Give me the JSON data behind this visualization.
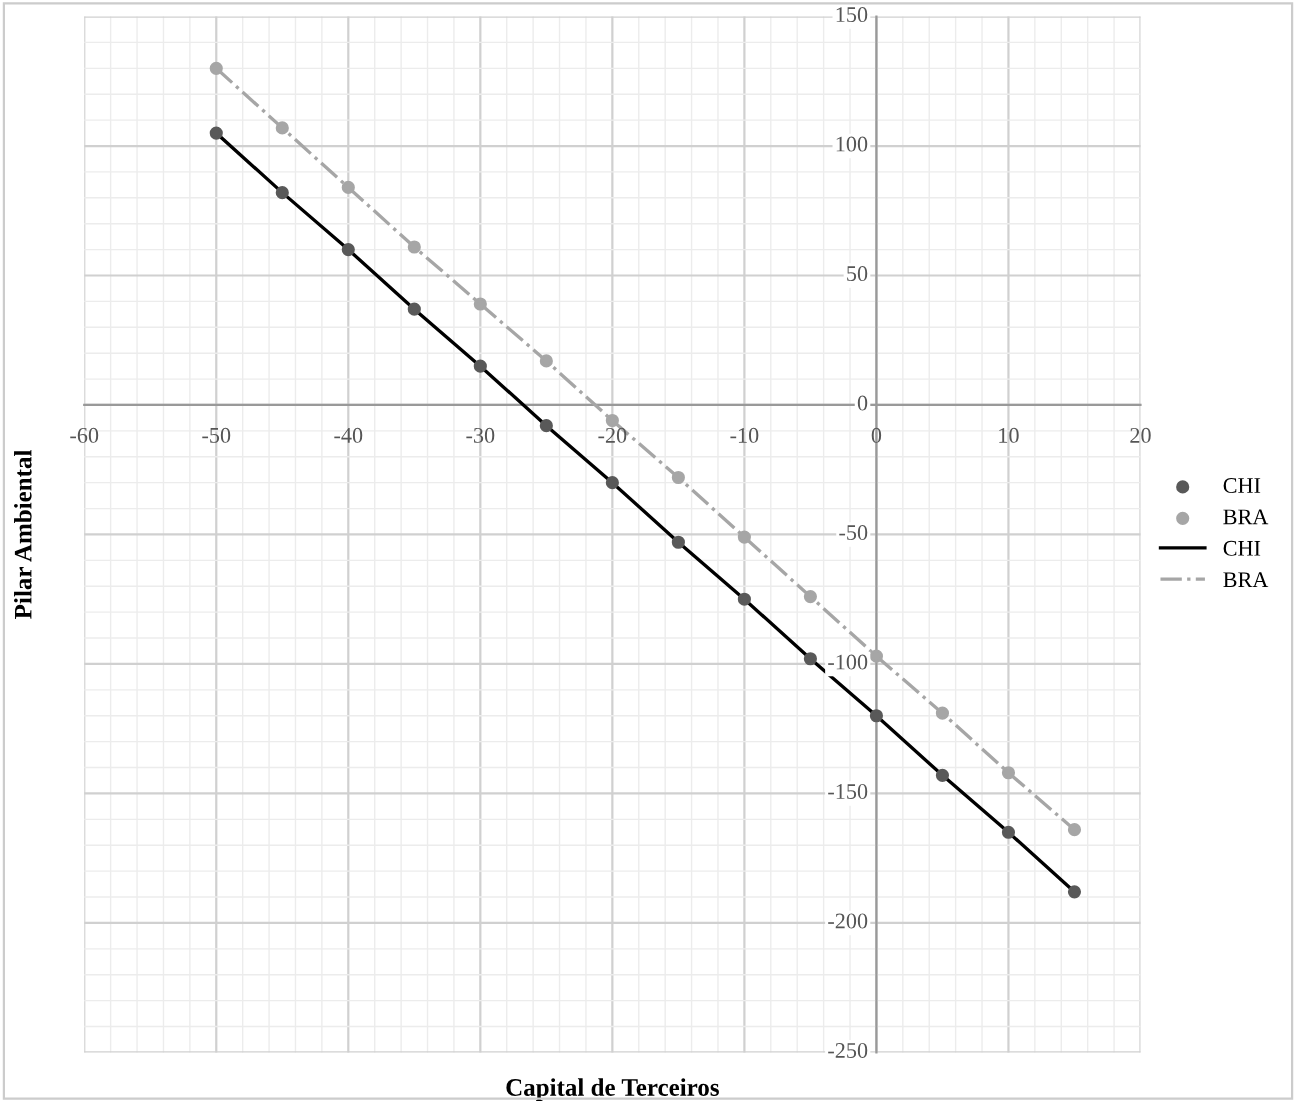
{
  "chart_data": {
    "type": "scatter",
    "xlabel": "Capital de Terceiros",
    "ylabel": "Pilar Ambiental",
    "x": [
      -50,
      -45,
      -40,
      -35,
      -30,
      -25,
      -20,
      -15,
      -10,
      -5,
      0,
      5,
      10,
      15
    ],
    "series": [
      {
        "name": "CHI",
        "color": "#595959",
        "marker": "circle",
        "values": [
          105,
          82,
          60,
          37,
          15,
          -8,
          -30,
          -53,
          -75,
          -98,
          -120,
          -143,
          -165,
          -188
        ]
      },
      {
        "name": "BRA",
        "color": "#a6a6a6",
        "marker": "circle",
        "values": [
          130,
          107,
          84,
          61,
          39,
          17,
          -6,
          -28,
          -51,
          -74,
          -97,
          -119,
          -142,
          -164
        ]
      },
      {
        "name": "CHI",
        "type": "line",
        "color": "#000000",
        "marker": "none",
        "line_style": "solid",
        "values": [
          105,
          82,
          60,
          37,
          15,
          -8,
          -30,
          -53,
          -75,
          -98,
          -120,
          -143,
          -165,
          -188
        ]
      },
      {
        "name": "BRA",
        "type": "line",
        "color": "#a6a6a6",
        "marker": "none",
        "line_style": "dashdot",
        "values": [
          130,
          107,
          84,
          61,
          39,
          17,
          -6,
          -28,
          -51,
          -74,
          -97,
          -119,
          -142,
          -164
        ]
      }
    ],
    "xlim": [
      -60,
      20
    ],
    "xticks": [
      -60,
      -50,
      -40,
      -30,
      -20,
      -10,
      0,
      10,
      20
    ],
    "ylim": [
      -250,
      150
    ],
    "yticks": [
      -250,
      -200,
      -150,
      -100,
      -50,
      0,
      50,
      100,
      150
    ],
    "grid": true,
    "legend": "right"
  }
}
